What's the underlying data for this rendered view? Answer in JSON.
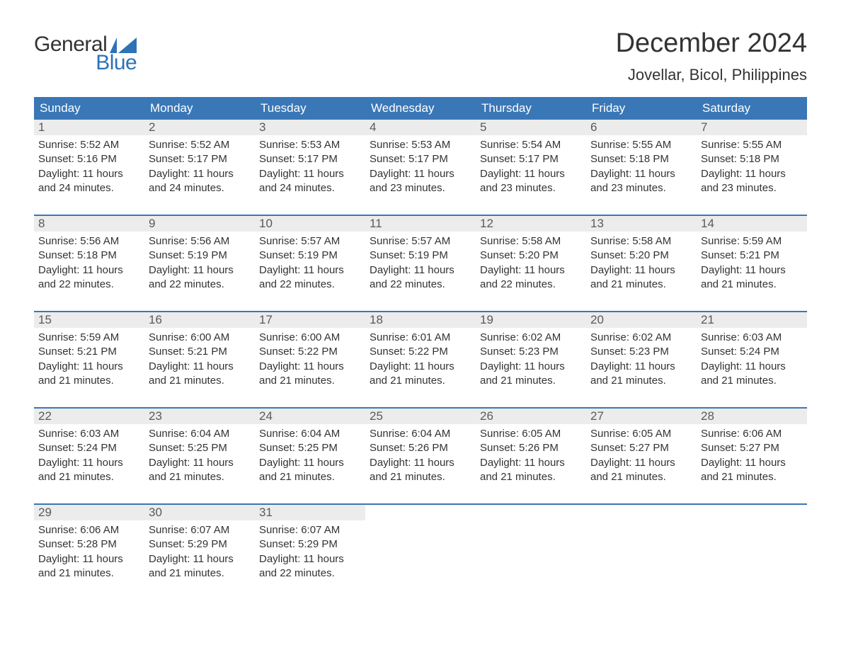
{
  "brand": {
    "word1": "General",
    "word2": "Blue",
    "word1_color": "#333333",
    "word2_color": "#2f72b6",
    "glyph_color": "#2f72b6"
  },
  "title": "December 2024",
  "location": "Jovellar, Bicol, Philippines",
  "colors": {
    "header_bg": "#3a77b7",
    "header_text": "#ffffff",
    "daynum_bg": "#ececec",
    "daynum_text": "#5a5a5a",
    "body_text": "#333333",
    "week_border": "#3a77b7",
    "page_bg": "#ffffff"
  },
  "typography": {
    "title_fontsize": 38,
    "location_fontsize": 22,
    "dayheader_fontsize": 17,
    "daynum_fontsize": 17,
    "body_fontsize": 15,
    "logo_fontsize": 30
  },
  "day_names": [
    "Sunday",
    "Monday",
    "Tuesday",
    "Wednesday",
    "Thursday",
    "Friday",
    "Saturday"
  ],
  "weeks": [
    [
      {
        "num": "1",
        "sunrise": "5:52 AM",
        "sunset": "5:16 PM",
        "daylight": "11 hours and 24 minutes."
      },
      {
        "num": "2",
        "sunrise": "5:52 AM",
        "sunset": "5:17 PM",
        "daylight": "11 hours and 24 minutes."
      },
      {
        "num": "3",
        "sunrise": "5:53 AM",
        "sunset": "5:17 PM",
        "daylight": "11 hours and 24 minutes."
      },
      {
        "num": "4",
        "sunrise": "5:53 AM",
        "sunset": "5:17 PM",
        "daylight": "11 hours and 23 minutes."
      },
      {
        "num": "5",
        "sunrise": "5:54 AM",
        "sunset": "5:17 PM",
        "daylight": "11 hours and 23 minutes."
      },
      {
        "num": "6",
        "sunrise": "5:55 AM",
        "sunset": "5:18 PM",
        "daylight": "11 hours and 23 minutes."
      },
      {
        "num": "7",
        "sunrise": "5:55 AM",
        "sunset": "5:18 PM",
        "daylight": "11 hours and 23 minutes."
      }
    ],
    [
      {
        "num": "8",
        "sunrise": "5:56 AM",
        "sunset": "5:18 PM",
        "daylight": "11 hours and 22 minutes."
      },
      {
        "num": "9",
        "sunrise": "5:56 AM",
        "sunset": "5:19 PM",
        "daylight": "11 hours and 22 minutes."
      },
      {
        "num": "10",
        "sunrise": "5:57 AM",
        "sunset": "5:19 PM",
        "daylight": "11 hours and 22 minutes."
      },
      {
        "num": "11",
        "sunrise": "5:57 AM",
        "sunset": "5:19 PM",
        "daylight": "11 hours and 22 minutes."
      },
      {
        "num": "12",
        "sunrise": "5:58 AM",
        "sunset": "5:20 PM",
        "daylight": "11 hours and 22 minutes."
      },
      {
        "num": "13",
        "sunrise": "5:58 AM",
        "sunset": "5:20 PM",
        "daylight": "11 hours and 21 minutes."
      },
      {
        "num": "14",
        "sunrise": "5:59 AM",
        "sunset": "5:21 PM",
        "daylight": "11 hours and 21 minutes."
      }
    ],
    [
      {
        "num": "15",
        "sunrise": "5:59 AM",
        "sunset": "5:21 PM",
        "daylight": "11 hours and 21 minutes."
      },
      {
        "num": "16",
        "sunrise": "6:00 AM",
        "sunset": "5:21 PM",
        "daylight": "11 hours and 21 minutes."
      },
      {
        "num": "17",
        "sunrise": "6:00 AM",
        "sunset": "5:22 PM",
        "daylight": "11 hours and 21 minutes."
      },
      {
        "num": "18",
        "sunrise": "6:01 AM",
        "sunset": "5:22 PM",
        "daylight": "11 hours and 21 minutes."
      },
      {
        "num": "19",
        "sunrise": "6:02 AM",
        "sunset": "5:23 PM",
        "daylight": "11 hours and 21 minutes."
      },
      {
        "num": "20",
        "sunrise": "6:02 AM",
        "sunset": "5:23 PM",
        "daylight": "11 hours and 21 minutes."
      },
      {
        "num": "21",
        "sunrise": "6:03 AM",
        "sunset": "5:24 PM",
        "daylight": "11 hours and 21 minutes."
      }
    ],
    [
      {
        "num": "22",
        "sunrise": "6:03 AM",
        "sunset": "5:24 PM",
        "daylight": "11 hours and 21 minutes."
      },
      {
        "num": "23",
        "sunrise": "6:04 AM",
        "sunset": "5:25 PM",
        "daylight": "11 hours and 21 minutes."
      },
      {
        "num": "24",
        "sunrise": "6:04 AM",
        "sunset": "5:25 PM",
        "daylight": "11 hours and 21 minutes."
      },
      {
        "num": "25",
        "sunrise": "6:04 AM",
        "sunset": "5:26 PM",
        "daylight": "11 hours and 21 minutes."
      },
      {
        "num": "26",
        "sunrise": "6:05 AM",
        "sunset": "5:26 PM",
        "daylight": "11 hours and 21 minutes."
      },
      {
        "num": "27",
        "sunrise": "6:05 AM",
        "sunset": "5:27 PM",
        "daylight": "11 hours and 21 minutes."
      },
      {
        "num": "28",
        "sunrise": "6:06 AM",
        "sunset": "5:27 PM",
        "daylight": "11 hours and 21 minutes."
      }
    ],
    [
      {
        "num": "29",
        "sunrise": "6:06 AM",
        "sunset": "5:28 PM",
        "daylight": "11 hours and 21 minutes."
      },
      {
        "num": "30",
        "sunrise": "6:07 AM",
        "sunset": "5:29 PM",
        "daylight": "11 hours and 21 minutes."
      },
      {
        "num": "31",
        "sunrise": "6:07 AM",
        "sunset": "5:29 PM",
        "daylight": "11 hours and 22 minutes."
      },
      null,
      null,
      null,
      null
    ]
  ],
  "labels": {
    "sunrise_prefix": "Sunrise: ",
    "sunset_prefix": "Sunset: ",
    "daylight_prefix": "Daylight: "
  }
}
